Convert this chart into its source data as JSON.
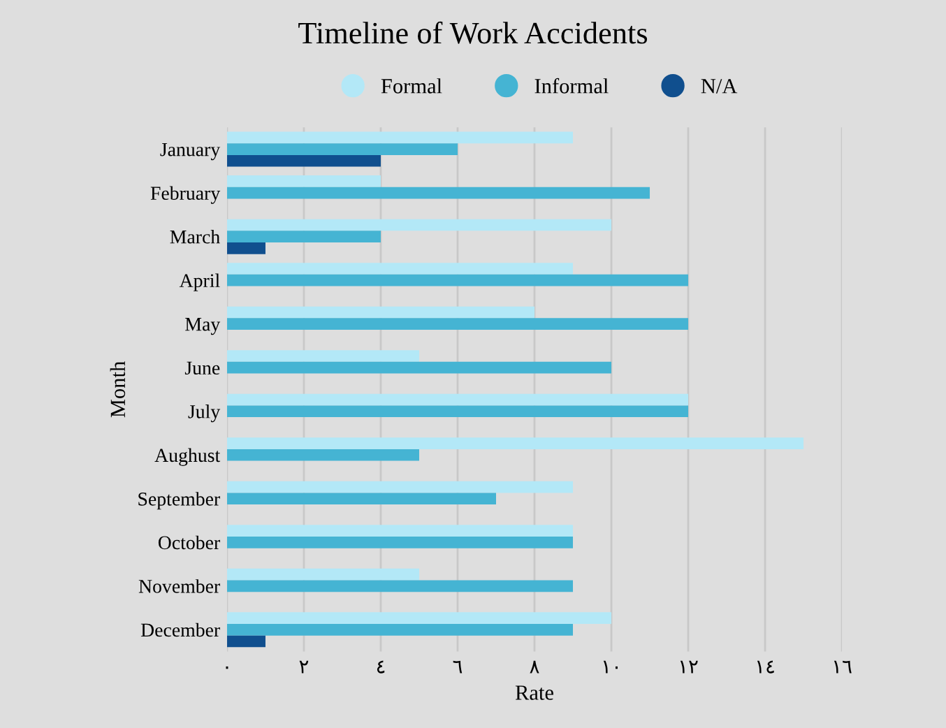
{
  "chart_data": {
    "type": "bar",
    "orientation": "horizontal",
    "title": "Timeline of Work Accidents",
    "xlabel": "Rate",
    "ylabel": "Month",
    "categories": [
      "January",
      "February",
      "March",
      "April",
      "May",
      "June",
      "July",
      "Aughust",
      "September",
      "October",
      "November",
      "December"
    ],
    "series": [
      {
        "name": "Formal",
        "color": "#b3e8f7",
        "values": [
          9,
          4,
          10,
          9,
          8,
          5,
          12,
          15,
          9,
          9,
          5,
          10
        ]
      },
      {
        "name": "Informal",
        "color": "#45b4d3",
        "values": [
          6,
          11,
          4,
          12,
          12,
          10,
          12,
          5,
          7,
          9,
          9,
          9
        ]
      },
      {
        "name": "N/A",
        "color": "#104f8e",
        "values": [
          4,
          null,
          1,
          null,
          null,
          null,
          null,
          null,
          null,
          null,
          null,
          1
        ]
      }
    ],
    "xlim": [
      0,
      16
    ],
    "xticks": [
      {
        "value": 0,
        "label": "٠"
      },
      {
        "value": 2,
        "label": "٢"
      },
      {
        "value": 4,
        "label": "٤"
      },
      {
        "value": 6,
        "label": "٦"
      },
      {
        "value": 8,
        "label": "٨"
      },
      {
        "value": 10,
        "label": "١٠"
      },
      {
        "value": 12,
        "label": "١٢"
      },
      {
        "value": 14,
        "label": "١٤"
      },
      {
        "value": 16,
        "label": "١٦"
      }
    ],
    "grid": "x",
    "legend": "top"
  }
}
